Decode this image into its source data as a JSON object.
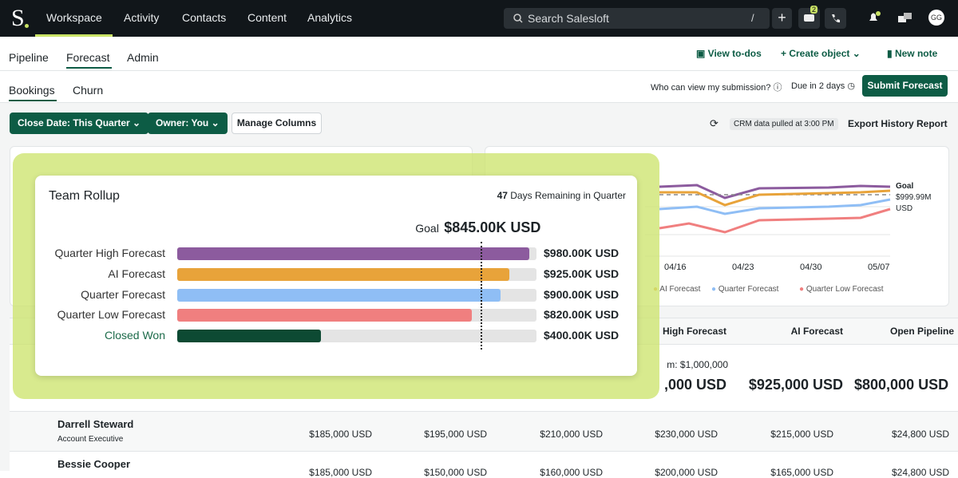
{
  "nav": {
    "logo": "S",
    "items": [
      "Workspace",
      "Activity",
      "Contacts",
      "Content",
      "Analytics"
    ],
    "search": "Search Salesloft",
    "search_shortcut": "/",
    "message_badge": "2",
    "avatar": "GG"
  },
  "subnav": {
    "tabs": [
      "Pipeline",
      "Forecast",
      "Admin"
    ],
    "actions": [
      "View to-dos",
      "Create object",
      "New note"
    ]
  },
  "toolbar": {
    "tabs": [
      "Bookings",
      "Churn"
    ],
    "visibility_question": "Who can view my submission?",
    "due": "Due in 2 days",
    "submit": "Submit Forecast"
  },
  "filters": {
    "close_date": "Close Date: This Quarter",
    "owner": "Owner: You",
    "manage": "Manage Columns",
    "crm_status": "CRM data pulled at 3:00 PM",
    "export": "Export History Report"
  },
  "trend_card": {
    "end_labels": [
      "Goal",
      "$999.99M",
      "USD"
    ],
    "dates": [
      "04/16",
      "04/23",
      "04/30",
      "05/07"
    ],
    "legend": [
      "AI Forecast",
      "Quarter Forecast",
      "Quarter Low Forecast"
    ]
  },
  "table": {
    "headers": [
      "High Forecast",
      "AI Forecast",
      "Open Pipeline"
    ],
    "summary_note": "m: $1,000,000",
    "summary": [
      ",000 USD",
      "$925,000 USD",
      "$800,000 USD"
    ],
    "rows": [
      {
        "name": "Darrell Steward",
        "title": "Account Executive",
        "cells": [
          "$185,000 USD",
          "$195,000 USD",
          "$210,000 USD",
          "$230,000 USD",
          "$215,000 USD",
          "$24,800 USD"
        ]
      },
      {
        "name": "Bessie Cooper",
        "cells": [
          "$185,000 USD",
          "$150,000 USD",
          "$160,000 USD",
          "$200,000 USD",
          "$165,000 USD",
          "$24,800 USD"
        ]
      }
    ]
  },
  "rollup": {
    "title": "Team Rollup",
    "days_remaining": 47,
    "days_label": "Days Remaining in Quarter",
    "goal": {
      "label": "Goal",
      "value": 845,
      "value_label": "$845.00K USD"
    },
    "xlim": [
      0,
      1000
    ],
    "bars": [
      {
        "name": "Quarter High Forecast",
        "value": 980,
        "value_label": "$980.00K USD",
        "color": "#8c5b9e"
      },
      {
        "name": "AI Forecast",
        "value": 925,
        "value_label": "$925.00K USD",
        "color": "#e8a33a"
      },
      {
        "name": "Quarter Forecast",
        "value": 900,
        "value_label": "$900.00K USD",
        "color": "#8fbef5"
      },
      {
        "name": "Quarter Low Forecast",
        "value": 820,
        "value_label": "$820.00K USD",
        "color": "#f07f7f"
      },
      {
        "name": "Closed Won",
        "value": 400,
        "value_label": "$400.00K USD",
        "color": "#0d4a33"
      }
    ]
  }
}
